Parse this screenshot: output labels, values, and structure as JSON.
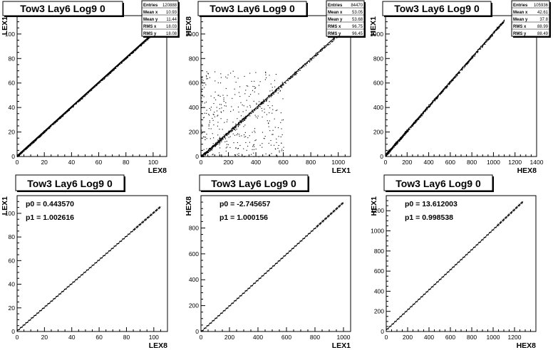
{
  "chart_data": [
    {
      "type": "scatter",
      "title": "Tow3 Lay6 Log9 0",
      "xlabel": "LEX8",
      "ylabel": "LEX1",
      "xlim": [
        0,
        110
      ],
      "ylim": [
        0,
        115
      ],
      "xticks": [
        0,
        20,
        40,
        60,
        80,
        100
      ],
      "yticks": [
        0,
        20,
        40,
        60,
        80,
        100
      ],
      "stats": [
        {
          "label": "Entries",
          "value": "120888"
        },
        {
          "label": "Mean x",
          "value": "10.93"
        },
        {
          "label": "Mean y",
          "value": "11.44"
        },
        {
          "label": "RMS x",
          "value": "18.03"
        },
        {
          "label": "RMS y",
          "value": "18.08"
        }
      ],
      "trend": {
        "slope": 1.002616,
        "intercept": 0.44357,
        "x_range": [
          0,
          105
        ],
        "scatter": "tight"
      }
    },
    {
      "type": "scatter",
      "title": "Tow3 Lay6 Log9 0",
      "xlabel": "LEX1",
      "ylabel": "HEX8",
      "xlim": [
        0,
        1090
      ],
      "ylim": [
        0,
        1150
      ],
      "xticks": [
        0,
        200,
        400,
        600,
        800,
        1000
      ],
      "yticks": [
        0,
        200,
        400,
        600,
        800,
        1000
      ],
      "stats": [
        {
          "label": "Entries",
          "value": "84470"
        },
        {
          "label": "Mean x",
          "value": "53.05"
        },
        {
          "label": "Mean y",
          "value": "53.68"
        },
        {
          "label": "RMS x",
          "value": "96.75"
        },
        {
          "label": "RMS y",
          "value": "96.45"
        }
      ],
      "trend": {
        "slope": 1.000156,
        "intercept": -2.745657,
        "x_range": [
          0,
          1000
        ],
        "scatter": "wide"
      }
    },
    {
      "type": "scatter",
      "title": "Tow3 Lay6 Log9 0",
      "xlabel": "HEX8",
      "ylabel": "HEX1",
      "xlim": [
        0,
        1400
      ],
      "ylim": [
        0,
        1150
      ],
      "xticks": [
        0,
        200,
        400,
        600,
        800,
        1000,
        1200,
        1400
      ],
      "yticks": [
        0,
        200,
        400,
        600,
        800,
        1000
      ],
      "stats": [
        {
          "label": "Entries",
          "value": "105936"
        },
        {
          "label": "Mean x",
          "value": "42.61"
        },
        {
          "label": "Mean y",
          "value": "37.8"
        },
        {
          "label": "RMS x",
          "value": "88.99"
        },
        {
          "label": "RMS y",
          "value": "88.49"
        }
      ],
      "trend": {
        "slope": 0.998538,
        "intercept": 13.612003,
        "x_range": [
          0,
          1100
        ],
        "scatter": "medium"
      }
    },
    {
      "type": "line",
      "title": "Tow3 Lay6 Log9 0",
      "xlabel": "LEX8",
      "ylabel": "LEX1",
      "xlim": [
        0,
        110
      ],
      "ylim": [
        0,
        115
      ],
      "xticks": [
        0,
        20,
        40,
        60,
        80,
        100
      ],
      "yticks": [
        0,
        20,
        40,
        60,
        80,
        100
      ],
      "fit": {
        "p0": "0.443570",
        "p1": "1.002616"
      },
      "x_range": [
        0,
        105
      ]
    },
    {
      "type": "line",
      "title": "Tow3 Lay6 Log9 0",
      "xlabel": "LEX1",
      "ylabel": "HEX8",
      "xlim": [
        0,
        1050
      ],
      "ylim": [
        0,
        1050
      ],
      "xticks": [
        0,
        200,
        400,
        600,
        800,
        1000
      ],
      "yticks": [
        0,
        200,
        400,
        600,
        800
      ],
      "fit": {
        "p0": "-2.745657",
        "p1": "1.000156"
      },
      "x_range": [
        0,
        1000
      ]
    },
    {
      "type": "line",
      "title": "Tow3 Lay6 Log9 0",
      "xlabel": "HEX8",
      "ylabel": "HEX1",
      "xlim": [
        0,
        1400
      ],
      "ylim": [
        0,
        1350
      ],
      "xticks": [
        0,
        200,
        400,
        600,
        800,
        1000,
        1200
      ],
      "yticks": [
        0,
        200,
        400,
        600,
        800,
        1000,
        1200
      ],
      "fit": {
        "p0": "13.612003",
        "p1": "0.998538"
      },
      "x_range": [
        0,
        1280
      ]
    }
  ]
}
